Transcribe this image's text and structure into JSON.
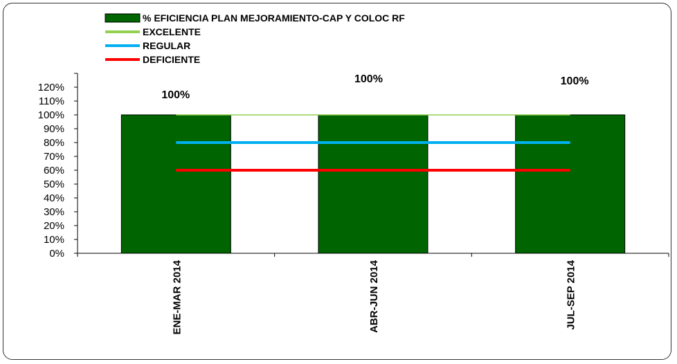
{
  "chart_data": {
    "type": "bar",
    "categories": [
      "ENE-MAR 2014",
      "ABR-JUN 2014",
      "JUL-SEP 2014"
    ],
    "series": [
      {
        "name": "% EFICIENCIA PLAN MEJORAMIENTO-CAP Y COLOC RF",
        "type": "bar",
        "values": [
          1.0,
          1.0,
          1.0
        ],
        "color": "#006400"
      },
      {
        "name": "EXCELENTE",
        "type": "line",
        "values": [
          1.0,
          1.0,
          1.0
        ],
        "color": "#92D050"
      },
      {
        "name": "REGULAR",
        "type": "line",
        "values": [
          0.8,
          0.8,
          0.8
        ],
        "color": "#00B0F0"
      },
      {
        "name": "DEFICIENTE",
        "type": "line",
        "values": [
          0.6,
          0.6,
          0.6
        ],
        "color": "#FF0000"
      }
    ],
    "data_labels": [
      "100%",
      "100%",
      "100%"
    ],
    "y_ticks": [
      "0%",
      "10%",
      "20%",
      "30%",
      "40%",
      "50%",
      "60%",
      "70%",
      "80%",
      "90%",
      "100%",
      "110%",
      "120%"
    ],
    "ylim": [
      0,
      1.3
    ],
    "grid": false,
    "legend_position": "top",
    "title": "",
    "xlabel": "",
    "ylabel": ""
  }
}
